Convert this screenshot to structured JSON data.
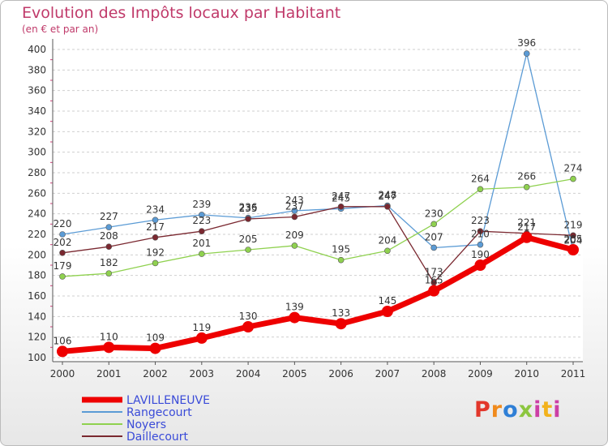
{
  "title": "Evolution des Impôts locaux par Habitant",
  "subtitle": "(en € et par an)",
  "logo": "Proxiti",
  "chart_data": {
    "type": "line",
    "title": "Evolution des Impôts locaux par Habitant",
    "subtitle": "(en € et par an)",
    "xlabel": "",
    "ylabel": "",
    "categories": [
      "2000",
      "2001",
      "2002",
      "2003",
      "2004",
      "2005",
      "2006",
      "2007",
      "2008",
      "2009",
      "2010",
      "2011"
    ],
    "y_ticks": [
      100,
      120,
      140,
      160,
      180,
      200,
      220,
      240,
      260,
      280,
      300,
      320,
      340,
      360,
      380,
      400
    ],
    "ylim": [
      100,
      400
    ],
    "grid": "horizontal",
    "legend_position": "bottom-left",
    "series": [
      {
        "name": "Rangecourt",
        "color": "#5b9bd5",
        "values": [
          220,
          227,
          234,
          239,
          236,
          243,
          245,
          248,
          207,
          210,
          396,
          204
        ]
      },
      {
        "name": "Noyers",
        "color": "#8fd14f",
        "values": [
          179,
          182,
          192,
          201,
          205,
          209,
          195,
          204,
          230,
          264,
          266,
          274
        ]
      },
      {
        "name": "Daillecourt",
        "color": "#7a2830",
        "values": [
          202,
          208,
          217,
          223,
          235,
          237,
          247,
          247,
          173,
          223,
          221,
          219
        ]
      },
      {
        "name": "LAVILLENEUVE",
        "color": "#ee0000",
        "values": [
          106,
          110,
          109,
          119,
          130,
          139,
          133,
          145,
          165,
          190,
          217,
          205
        ]
      }
    ]
  }
}
